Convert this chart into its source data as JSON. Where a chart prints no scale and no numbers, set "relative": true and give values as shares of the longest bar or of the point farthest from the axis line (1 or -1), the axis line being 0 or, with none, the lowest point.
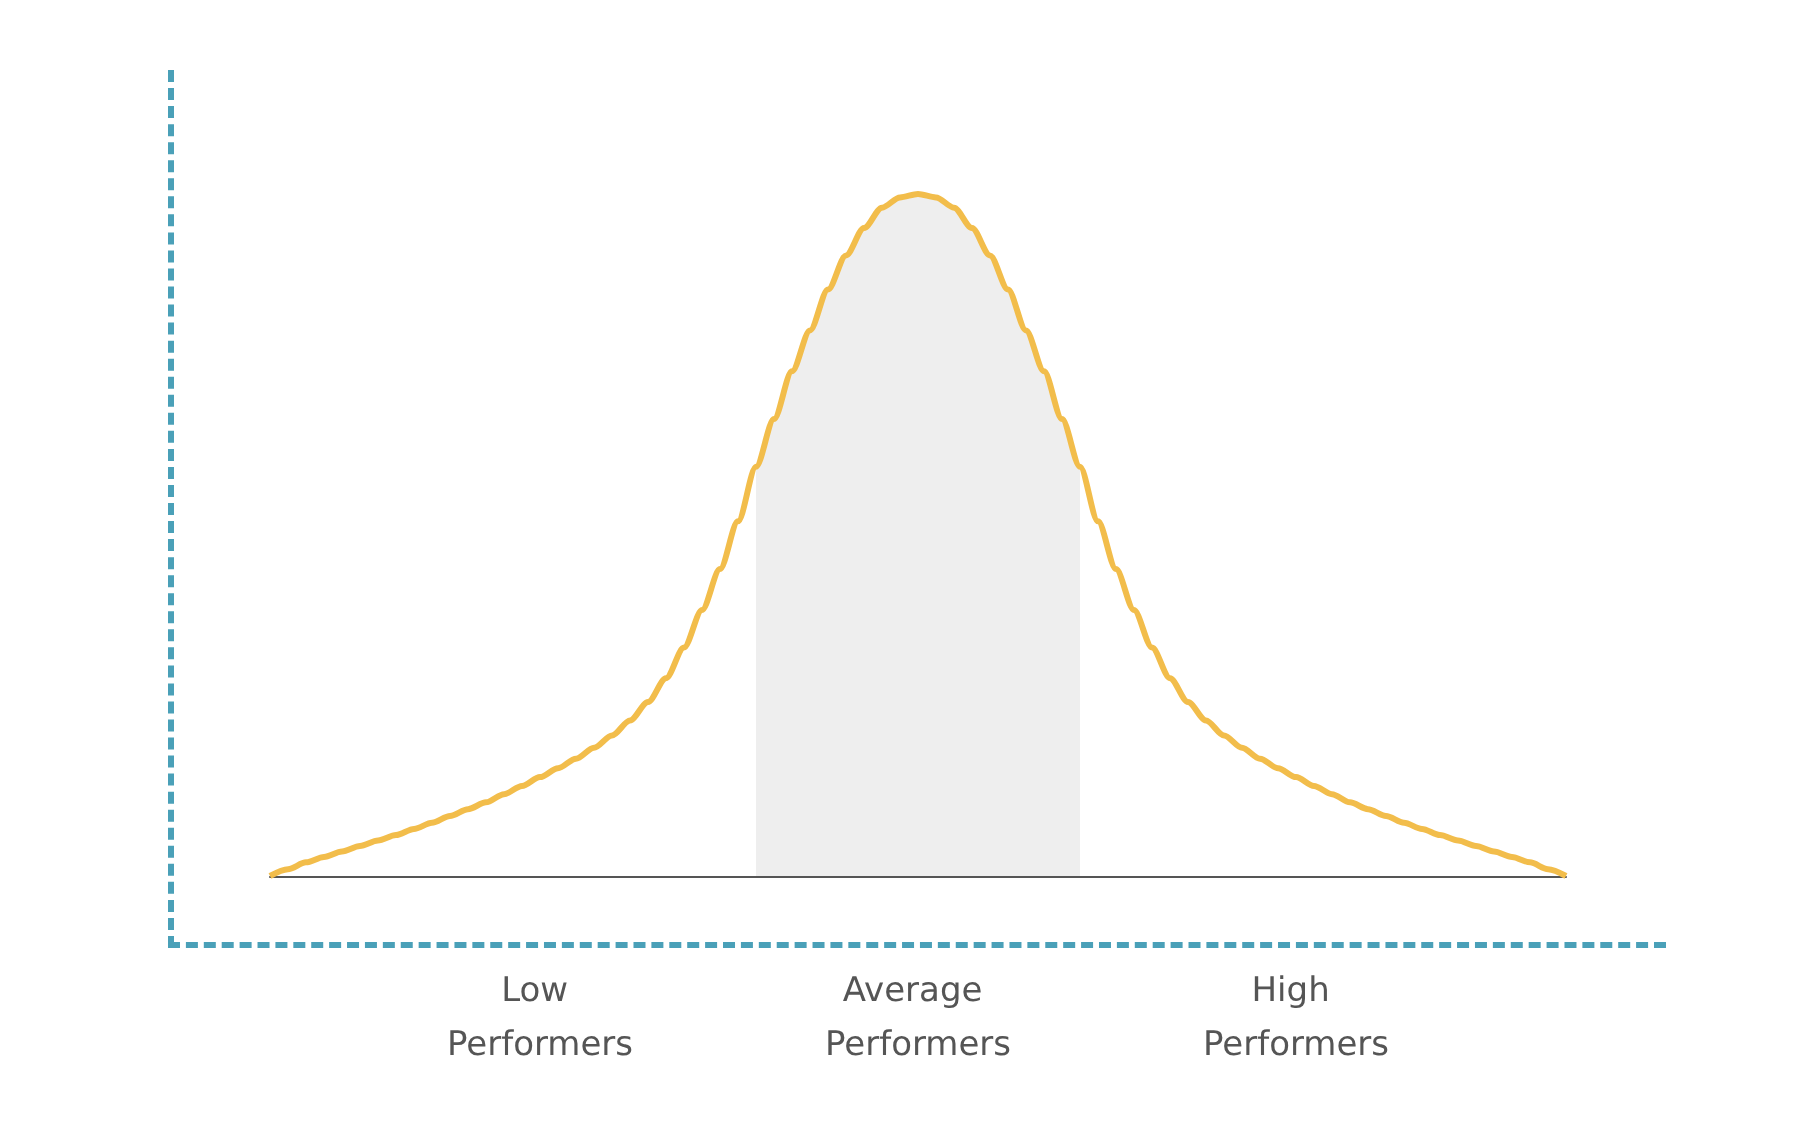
{
  "chart_data": {
    "type": "line",
    "relative": true,
    "marker": "none",
    "categories": [
      null,
      null,
      null,
      null,
      null,
      null,
      null,
      null,
      null,
      null,
      null,
      null,
      null,
      null,
      null,
      "Low Performers",
      null,
      null,
      null,
      null,
      null,
      null,
      null,
      null,
      null,
      null,
      null,
      null,
      null,
      null,
      null,
      null,
      null,
      null,
      null,
      null,
      "Average Performers",
      null,
      null,
      null,
      null,
      null,
      null,
      null,
      null,
      null,
      null,
      null,
      null,
      null,
      null,
      null,
      null,
      null,
      null,
      null,
      null,
      "High Performers",
      null,
      null,
      null,
      null,
      null,
      null,
      null,
      null,
      null,
      null,
      null,
      null,
      null,
      null,
      null
    ],
    "series": [
      {
        "type": "area",
        "color": "#eeeeee",
        "values": [
          null,
          null,
          null,
          null,
          null,
          null,
          null,
          null,
          null,
          null,
          null,
          null,
          null,
          null,
          null,
          null,
          null,
          null,
          null,
          null,
          null,
          null,
          null,
          null,
          null,
          null,
          null,
          0.6,
          0.67,
          0.74,
          0.8,
          0.86,
          0.91,
          0.95,
          0.98,
          0.995,
          1,
          0.995,
          0.98,
          0.95,
          0.91,
          0.86,
          0.8,
          0.74,
          0.67,
          0.6,
          null,
          null,
          null,
          null,
          null,
          null,
          null,
          null,
          null,
          null,
          null,
          null,
          null,
          null,
          null,
          null,
          null,
          null,
          null,
          null,
          null,
          null,
          null,
          null,
          null,
          null,
          null
        ]
      },
      {
        "type": "line",
        "color": "#f2bd4b",
        "values": [
          0,
          0.01,
          0.02,
          0.028,
          0.036,
          0.044,
          0.052,
          0.06,
          0.069,
          0.078,
          0.088,
          0.098,
          0.108,
          0.12,
          0.132,
          0.145,
          0.158,
          0.172,
          0.188,
          0.206,
          0.228,
          0.255,
          0.29,
          0.335,
          0.39,
          0.45,
          0.52,
          0.6,
          0.67,
          0.74,
          0.8,
          0.86,
          0.91,
          0.95,
          0.98,
          0.995,
          1,
          0.995,
          0.98,
          0.95,
          0.91,
          0.86,
          0.8,
          0.74,
          0.67,
          0.6,
          0.52,
          0.45,
          0.39,
          0.335,
          0.29,
          0.255,
          0.228,
          0.206,
          0.188,
          0.172,
          0.158,
          0.145,
          0.132,
          0.12,
          0.108,
          0.098,
          0.088,
          0.078,
          0.069,
          0.06,
          0.052,
          0.044,
          0.036,
          0.028,
          0.02,
          0.01,
          0
        ]
      }
    ]
  }
}
